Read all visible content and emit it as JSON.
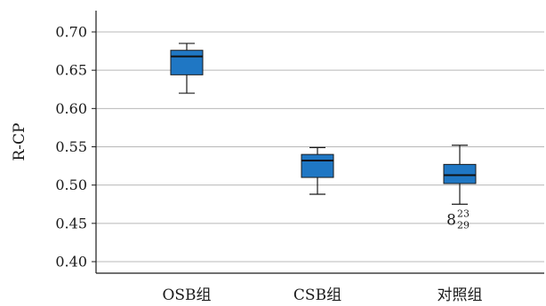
{
  "chart_data": {
    "type": "boxplot",
    "title": "",
    "xlabel": "",
    "ylabel": "R-CP",
    "ylim": [
      0.38,
      0.72
    ],
    "yticks": [
      "0.70",
      "0.65",
      "0.60",
      "0.55",
      "0.50",
      "0.45",
      "0.40"
    ],
    "ytick_values": [
      0.7,
      0.65,
      0.6,
      0.55,
      0.5,
      0.45,
      0.4
    ],
    "grid": true,
    "box_color": "#1f77c4",
    "categories": [
      "OSB组",
      "CSB组",
      "对照组"
    ],
    "boxes": [
      {
        "category": "OSB组",
        "whisker_low": 0.62,
        "q1": 0.644,
        "median": 0.668,
        "q3": 0.676,
        "whisker_high": 0.685
      },
      {
        "category": "CSB组",
        "whisker_low": 0.488,
        "q1": 0.51,
        "median": 0.532,
        "q3": 0.54,
        "whisker_high": 0.549
      },
      {
        "category": "对照组",
        "whisker_low": 0.475,
        "q1": 0.502,
        "median": 0.513,
        "q3": 0.527,
        "whisker_high": 0.552
      }
    ],
    "annotations": [
      {
        "category": "对照组",
        "value": 0.455,
        "main": "8",
        "sup": "23",
        "sub": "29"
      }
    ]
  }
}
